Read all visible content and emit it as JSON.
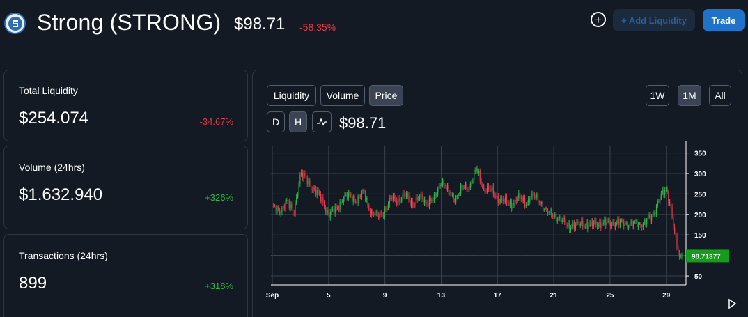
{
  "header": {
    "token_name": "Strong (STRONG)",
    "price": "$98.71",
    "change": "-58.35%",
    "add_liquidity_label": "+ Add Liquidity",
    "trade_label": "Trade",
    "logo_icon": "strong-logo-icon",
    "add_icon": "plus-circle-icon"
  },
  "stats": [
    {
      "label": "Total Liquidity",
      "value": "$254.074",
      "change": "-34.67%"
    },
    {
      "label": "Volume (24hrs)",
      "value": "$1.632.940",
      "change": "+326%"
    },
    {
      "label": "Transactions (24hrs)",
      "value": "899",
      "change": "+318%"
    }
  ],
  "chart_panel": {
    "tabs": [
      "Liquidity",
      "Volume",
      "Price"
    ],
    "active_tab": "Price",
    "ranges": [
      "1W",
      "1M",
      "All"
    ],
    "active_range": "1M",
    "intervals": [
      "D",
      "H"
    ],
    "active_interval": "H",
    "line_icon": "line-chart-icon",
    "play_icon": "play-icon",
    "current_price": "$98.71",
    "price_tag": "98.71377"
  },
  "colors": {
    "up": "#2fb44a",
    "down": "#e03a4a",
    "accent": "#1e73c8",
    "price_tag_bg": "#169c1c"
  },
  "chart_data": {
    "type": "candlestick",
    "x_tick_labels": [
      "Sep",
      "5",
      "9",
      "13",
      "17",
      "21",
      "25",
      "29"
    ],
    "x_tick_days": [
      1,
      5,
      9,
      13,
      17,
      21,
      25,
      29
    ],
    "y_ticks": [
      50,
      100,
      150,
      200,
      250,
      300,
      350
    ],
    "y_tick_labels": [
      "50",
      "",
      "150",
      "200",
      "250",
      "300",
      "350"
    ],
    "ylim": [
      28,
      368
    ],
    "xlim": [
      0.9,
      30.4
    ],
    "grid": true,
    "last_price": 98.71377,
    "series": [
      {
        "x": [
          1.0,
          1.5,
          2.0,
          2.5,
          3.0,
          3.5,
          4.0,
          4.5,
          5.0,
          5.5,
          6.0,
          6.5,
          7.0,
          7.5,
          8.0,
          8.5,
          9.0,
          9.5,
          10.0,
          10.5,
          11.0,
          11.5,
          12.0,
          12.5,
          13.0,
          13.5,
          14.0,
          14.5,
          15.0,
          15.5,
          16.0,
          16.5,
          17.0,
          17.5,
          18.0,
          18.5,
          19.0,
          19.5,
          20.0,
          20.5,
          21.0,
          21.5,
          22.0,
          22.5,
          23.0,
          23.5,
          24.0,
          24.5,
          25.0,
          25.5,
          26.0,
          26.5,
          27.0,
          27.5,
          28.0,
          28.5,
          29.0,
          29.3,
          29.6,
          29.9,
          30.1
        ],
        "y": [
          220,
          205,
          235,
          200,
          300,
          280,
          260,
          235,
          200,
          210,
          240,
          245,
          235,
          255,
          205,
          195,
          210,
          240,
          235,
          245,
          225,
          240,
          230,
          235,
          285,
          255,
          240,
          265,
          270,
          310,
          265,
          260,
          240,
          230,
          225,
          240,
          230,
          245,
          235,
          205,
          200,
          185,
          175,
          170,
          180,
          170,
          180,
          175,
          180,
          178,
          180,
          175,
          178,
          180,
          195,
          240,
          260,
          225,
          150,
          95,
          98.71
        ]
      }
    ]
  }
}
